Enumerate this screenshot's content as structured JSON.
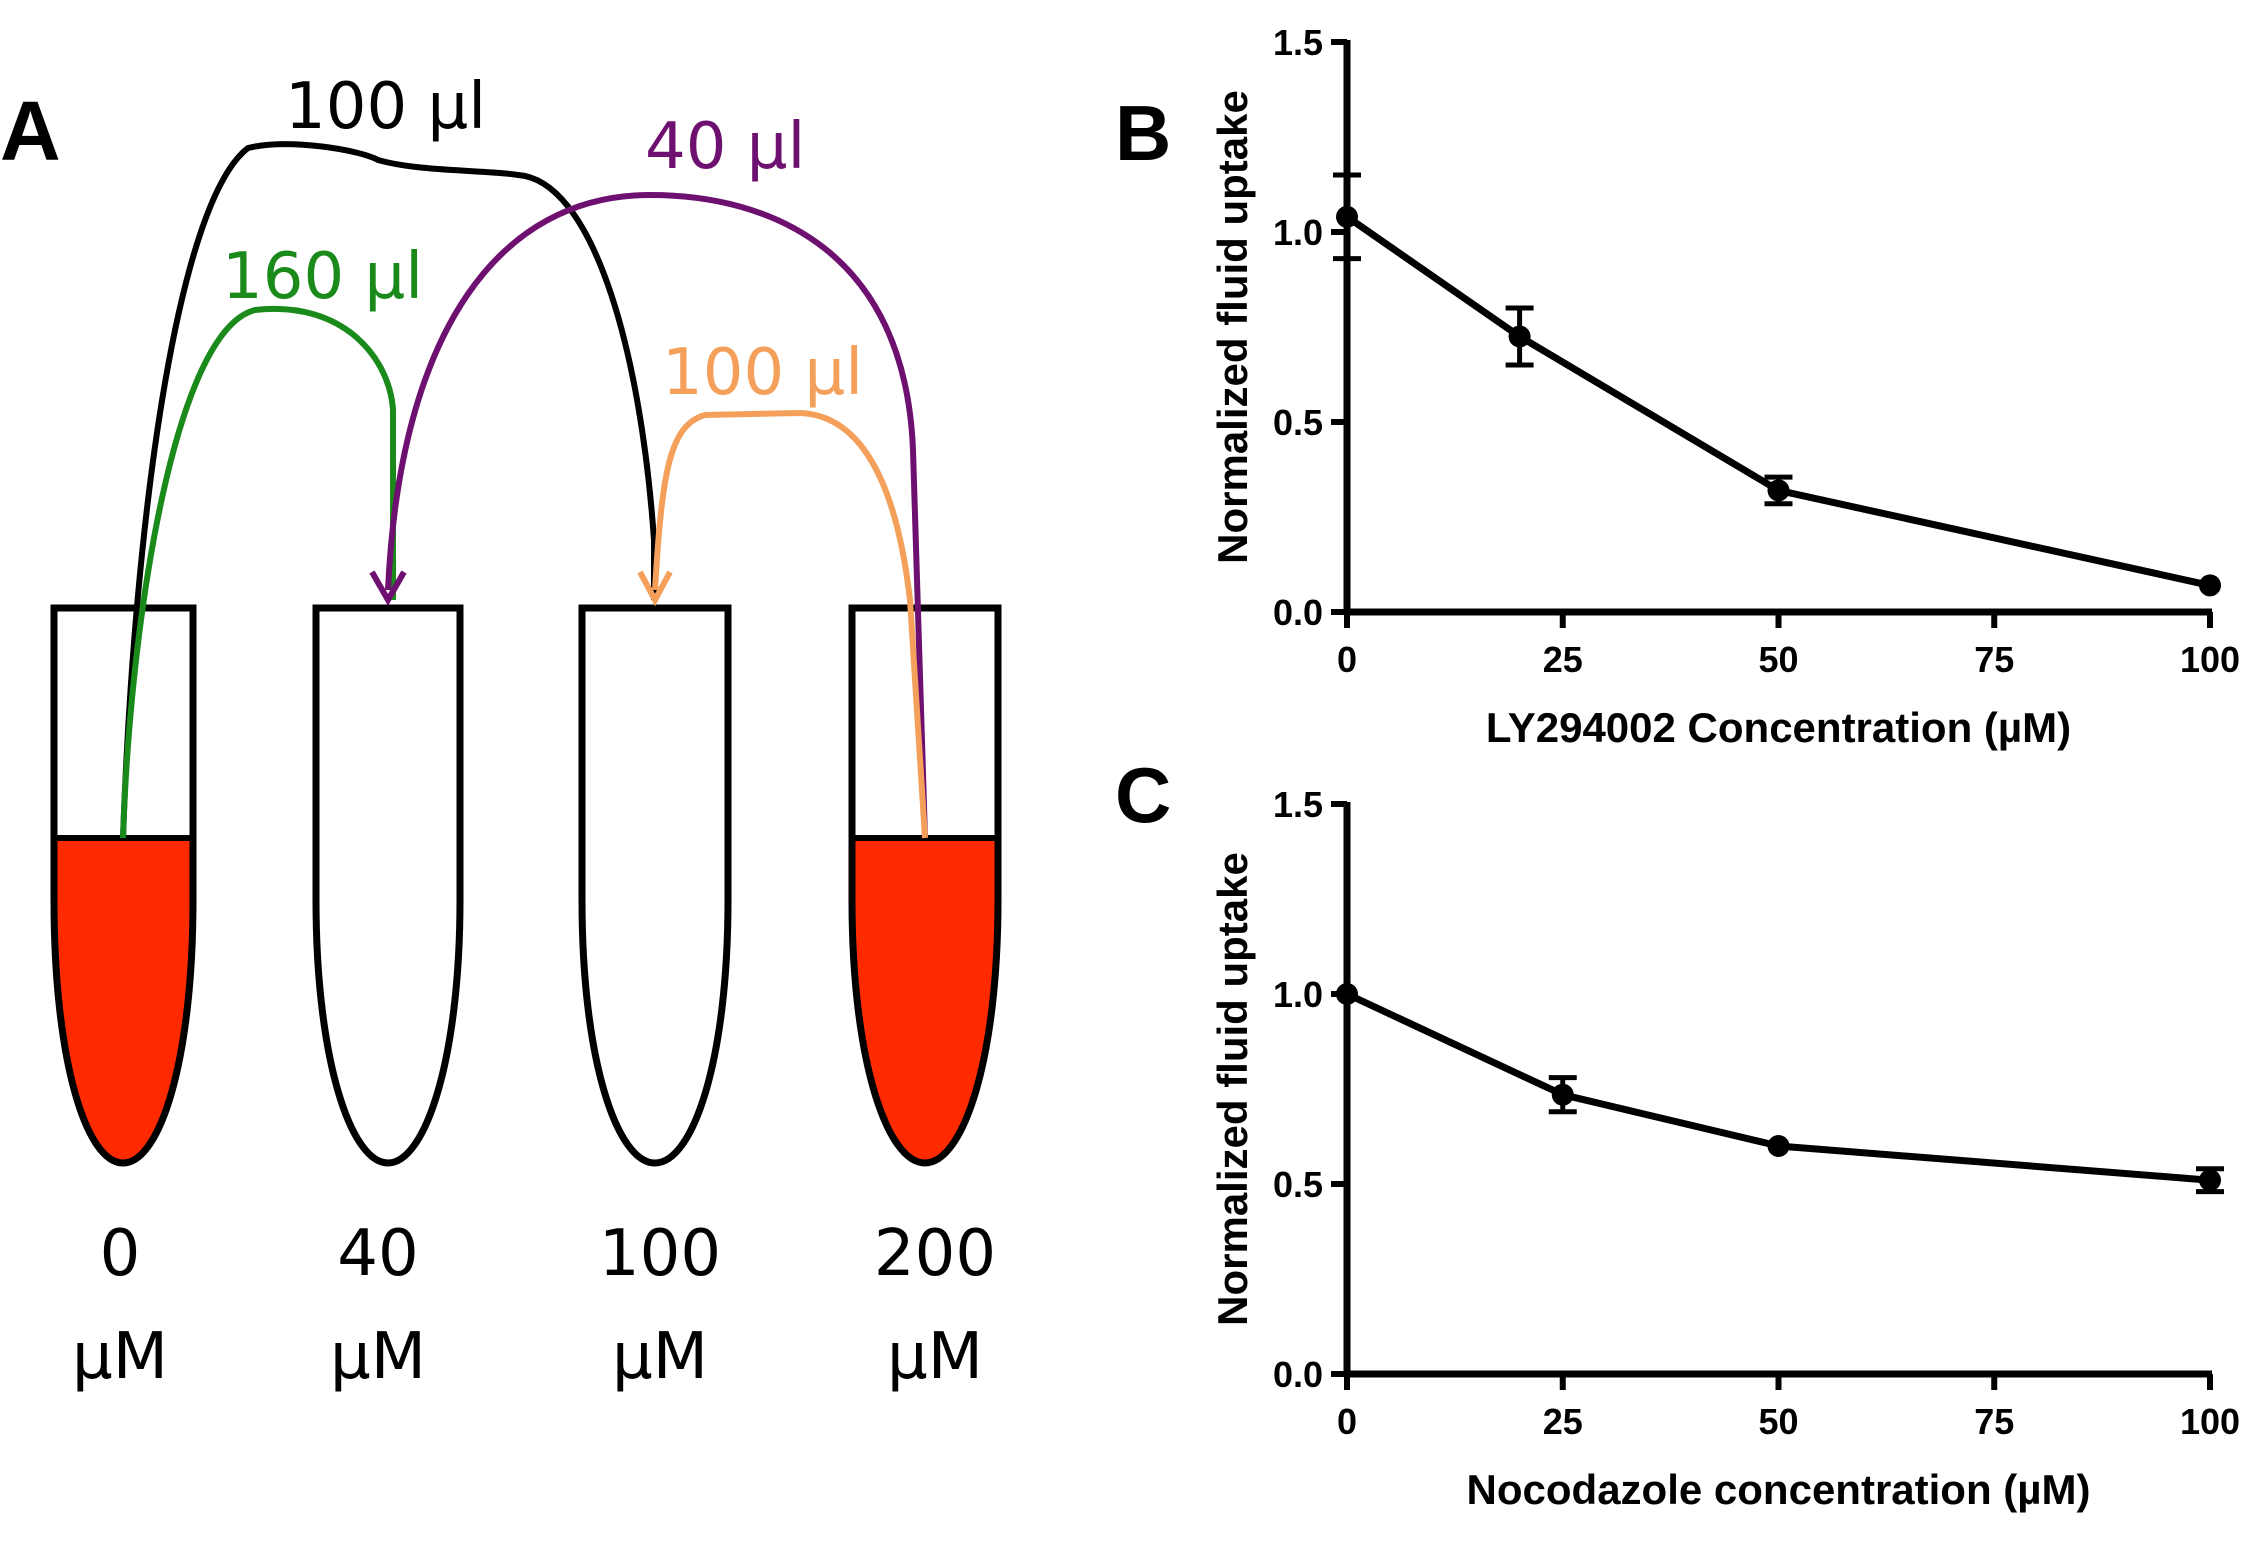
{
  "panels": {
    "a": {
      "letter": "A",
      "tubes": [
        {
          "conc": "0",
          "unit": "µM",
          "filled": true
        },
        {
          "conc": "40",
          "unit": "µM",
          "filled": false
        },
        {
          "conc": "100",
          "unit": "µM",
          "filled": false
        },
        {
          "conc": "200",
          "unit": "µM",
          "filled": true
        }
      ],
      "transfers": [
        {
          "label": "100 µl",
          "color": "#000000"
        },
        {
          "label": "160 µl",
          "color": "#1a8a1a"
        },
        {
          "label": "40 µl",
          "color": "#6e1070"
        },
        {
          "label": "100 µl",
          "color": "#f5a05a"
        }
      ],
      "fill_color": "#ff2a00"
    },
    "b": {
      "letter": "B"
    },
    "c": {
      "letter": "C"
    }
  },
  "chart_data": [
    {
      "type": "line",
      "panel": "B",
      "x": [
        0,
        20,
        50,
        100
      ],
      "y": [
        1.04,
        0.725,
        0.32,
        0.07
      ],
      "error": [
        0.11,
        0.075,
        0.035,
        0.0
      ],
      "xlabel": "LY294002 Concentration (µM)",
      "ylabel": "Normalized fluid uptake",
      "xlim": [
        0,
        100
      ],
      "ylim": [
        0,
        1.5
      ],
      "xticks": [
        "0",
        "25",
        "50",
        "75",
        "100"
      ],
      "xtick_values": [
        0,
        25,
        50,
        75,
        100
      ],
      "yticks": [
        "0.0",
        "0.5",
        "1.0",
        "1.5"
      ],
      "ytick_values": [
        0,
        0.5,
        1.0,
        1.5
      ]
    },
    {
      "type": "line",
      "panel": "C",
      "x": [
        0,
        25,
        50,
        100
      ],
      "y": [
        1.0,
        0.735,
        0.6,
        0.51
      ],
      "error": [
        0.0,
        0.045,
        0.0,
        0.03
      ],
      "xlabel": "Nocodazole concentration (µM)",
      "ylabel": "Normalized fluid uptake",
      "xlim": [
        0,
        100
      ],
      "ylim": [
        0,
        1.5
      ],
      "xticks": [
        "0",
        "25",
        "50",
        "75",
        "100"
      ],
      "xtick_values": [
        0,
        25,
        50,
        75,
        100
      ],
      "yticks": [
        "0.0",
        "0.5",
        "1.0",
        "1.5"
      ],
      "ytick_values": [
        0,
        0.5,
        1.0,
        1.5
      ]
    }
  ]
}
